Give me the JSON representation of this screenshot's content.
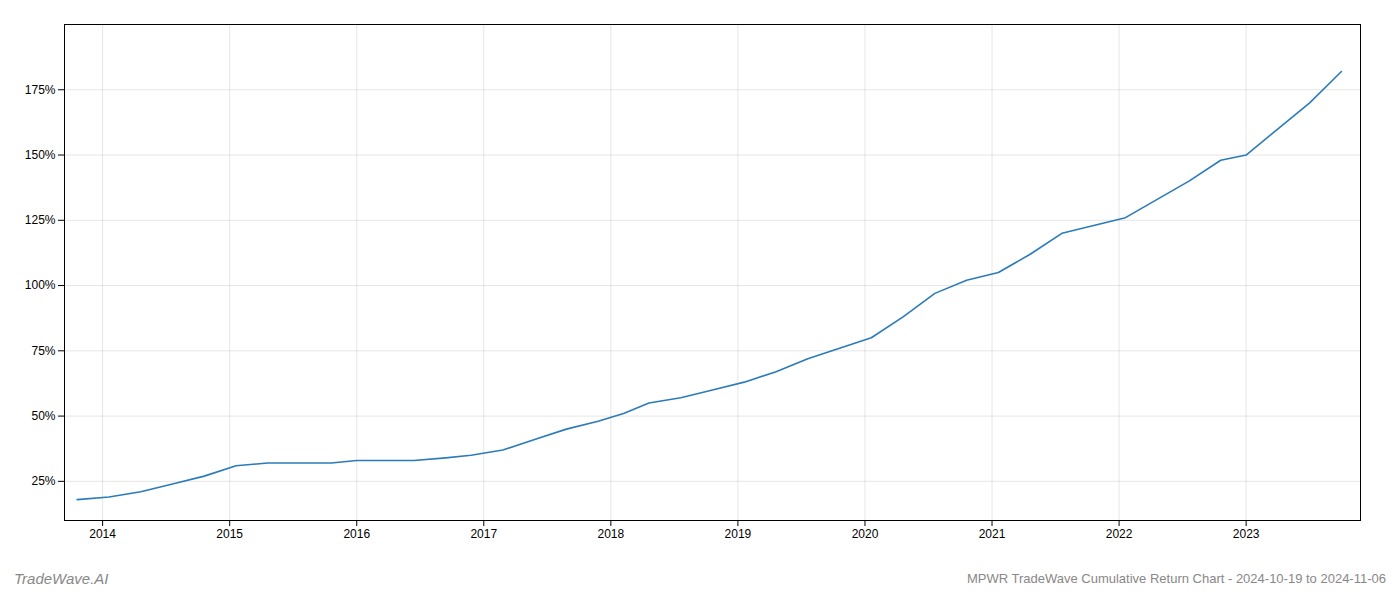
{
  "chart_data": {
    "type": "line",
    "title": "MPWR TradeWave Cumulative Return Chart - 2024-10-19 to 2024-11-06",
    "annotations": [
      "TradeWave.AI"
    ],
    "color": "#2b7bba",
    "x": [
      2013.8,
      2014.05,
      2014.3,
      2014.55,
      2014.8,
      2015.05,
      2015.3,
      2015.55,
      2015.8,
      2016.0,
      2016.2,
      2016.45,
      2016.7,
      2016.9,
      2017.15,
      2017.4,
      2017.65,
      2017.9,
      2018.1,
      2018.3,
      2018.55,
      2018.8,
      2019.05,
      2019.3,
      2019.55,
      2019.8,
      2020.05,
      2020.3,
      2020.55,
      2020.8,
      2021.05,
      2021.3,
      2021.55,
      2021.8,
      2022.05,
      2022.3,
      2022.55,
      2022.8,
      2023.0,
      2023.2,
      2023.5,
      2023.75
    ],
    "values": [
      18,
      19,
      21,
      24,
      27,
      31,
      32,
      32,
      32,
      33,
      33,
      33,
      34,
      35,
      37,
      41,
      45,
      48,
      51,
      55,
      57,
      60,
      63,
      67,
      72,
      76,
      80,
      88,
      97,
      102,
      105,
      112,
      120,
      123,
      126,
      133,
      140,
      148,
      150,
      158,
      170,
      182
    ],
    "xlim": [
      2013.7,
      2023.9
    ],
    "xticks": [
      2014,
      2015,
      2016,
      2017,
      2018,
      2019,
      2020,
      2021,
      2022,
      2023
    ],
    "ylim": [
      10,
      200
    ],
    "yticks": [
      {
        "value": 25,
        "label": "25%"
      },
      {
        "value": 50,
        "label": "50%"
      },
      {
        "value": 75,
        "label": "75%"
      },
      {
        "value": 100,
        "label": "100%"
      },
      {
        "value": 125,
        "label": "125%"
      },
      {
        "value": 150,
        "label": "150%"
      },
      {
        "value": 175,
        "label": "175%"
      }
    ],
    "grid": true
  }
}
